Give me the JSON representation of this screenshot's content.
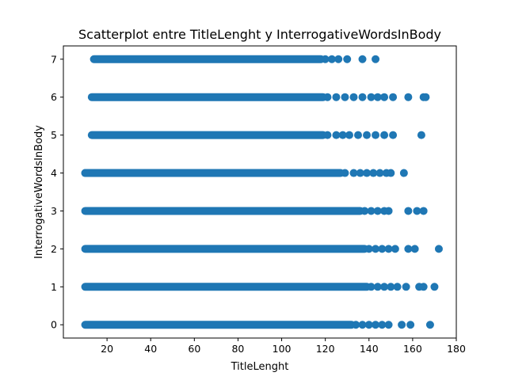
{
  "chart_data": {
    "type": "scatter",
    "title": "Scatterplot entre TitleLenght y InterrogativeWordsInBody",
    "xlabel": "TitleLenght",
    "ylabel": "InterrogativeWordsInBody",
    "xlim": [
      0,
      180
    ],
    "ylim": [
      -0.35,
      7.35
    ],
    "xticks": [
      20,
      40,
      60,
      80,
      100,
      120,
      140,
      160,
      180
    ],
    "yticks": [
      0,
      1,
      2,
      3,
      4,
      5,
      6,
      7
    ],
    "grid": false,
    "marker_color": "#1f77b4",
    "series": [
      {
        "dense_ranges": [
          {
            "y": 0,
            "x_start": 10,
            "x_end": 132
          },
          {
            "y": 1,
            "x_start": 10,
            "x_end": 139
          },
          {
            "y": 2,
            "x_start": 10,
            "x_end": 138
          },
          {
            "y": 3,
            "x_start": 10,
            "x_end": 136
          },
          {
            "y": 4,
            "x_start": 10,
            "x_end": 127
          },
          {
            "y": 5,
            "x_start": 13,
            "x_end": 119
          },
          {
            "y": 6,
            "x_start": 13,
            "x_end": 119
          },
          {
            "y": 7,
            "x_start": 14,
            "x_end": 118
          }
        ],
        "points": [
          {
            "x": 134,
            "y": 0
          },
          {
            "x": 137,
            "y": 0
          },
          {
            "x": 140,
            "y": 0
          },
          {
            "x": 143,
            "y": 0
          },
          {
            "x": 146,
            "y": 0
          },
          {
            "x": 149,
            "y": 0
          },
          {
            "x": 155,
            "y": 0
          },
          {
            "x": 159,
            "y": 0
          },
          {
            "x": 168,
            "y": 0
          },
          {
            "x": 141,
            "y": 1
          },
          {
            "x": 144,
            "y": 1
          },
          {
            "x": 147,
            "y": 1
          },
          {
            "x": 150,
            "y": 1
          },
          {
            "x": 153,
            "y": 1
          },
          {
            "x": 157,
            "y": 1
          },
          {
            "x": 163,
            "y": 1
          },
          {
            "x": 165,
            "y": 1
          },
          {
            "x": 170,
            "y": 1
          },
          {
            "x": 140,
            "y": 2
          },
          {
            "x": 143,
            "y": 2
          },
          {
            "x": 146,
            "y": 2
          },
          {
            "x": 149,
            "y": 2
          },
          {
            "x": 152,
            "y": 2
          },
          {
            "x": 158,
            "y": 2
          },
          {
            "x": 161,
            "y": 2
          },
          {
            "x": 172,
            "y": 2
          },
          {
            "x": 138,
            "y": 3
          },
          {
            "x": 141,
            "y": 3
          },
          {
            "x": 144,
            "y": 3
          },
          {
            "x": 147,
            "y": 3
          },
          {
            "x": 149,
            "y": 3
          },
          {
            "x": 158,
            "y": 3
          },
          {
            "x": 162,
            "y": 3
          },
          {
            "x": 165,
            "y": 3
          },
          {
            "x": 129,
            "y": 4
          },
          {
            "x": 133,
            "y": 4
          },
          {
            "x": 136,
            "y": 4
          },
          {
            "x": 139,
            "y": 4
          },
          {
            "x": 142,
            "y": 4
          },
          {
            "x": 145,
            "y": 4
          },
          {
            "x": 148,
            "y": 4
          },
          {
            "x": 150,
            "y": 4
          },
          {
            "x": 156,
            "y": 4
          },
          {
            "x": 10,
            "y": 4
          },
          {
            "x": 121,
            "y": 5
          },
          {
            "x": 125,
            "y": 5
          },
          {
            "x": 128,
            "y": 5
          },
          {
            "x": 131,
            "y": 5
          },
          {
            "x": 135,
            "y": 5
          },
          {
            "x": 139,
            "y": 5
          },
          {
            "x": 143,
            "y": 5
          },
          {
            "x": 147,
            "y": 5
          },
          {
            "x": 151,
            "y": 5
          },
          {
            "x": 164,
            "y": 5
          },
          {
            "x": 121,
            "y": 6
          },
          {
            "x": 125,
            "y": 6
          },
          {
            "x": 129,
            "y": 6
          },
          {
            "x": 133,
            "y": 6
          },
          {
            "x": 137,
            "y": 6
          },
          {
            "x": 141,
            "y": 6
          },
          {
            "x": 144,
            "y": 6
          },
          {
            "x": 147,
            "y": 6
          },
          {
            "x": 151,
            "y": 6
          },
          {
            "x": 158,
            "y": 6
          },
          {
            "x": 165,
            "y": 6
          },
          {
            "x": 166,
            "y": 6
          },
          {
            "x": 120,
            "y": 7
          },
          {
            "x": 123,
            "y": 7
          },
          {
            "x": 126,
            "y": 7
          },
          {
            "x": 130,
            "y": 7
          },
          {
            "x": 137,
            "y": 7
          },
          {
            "x": 143,
            "y": 7
          }
        ]
      }
    ]
  }
}
